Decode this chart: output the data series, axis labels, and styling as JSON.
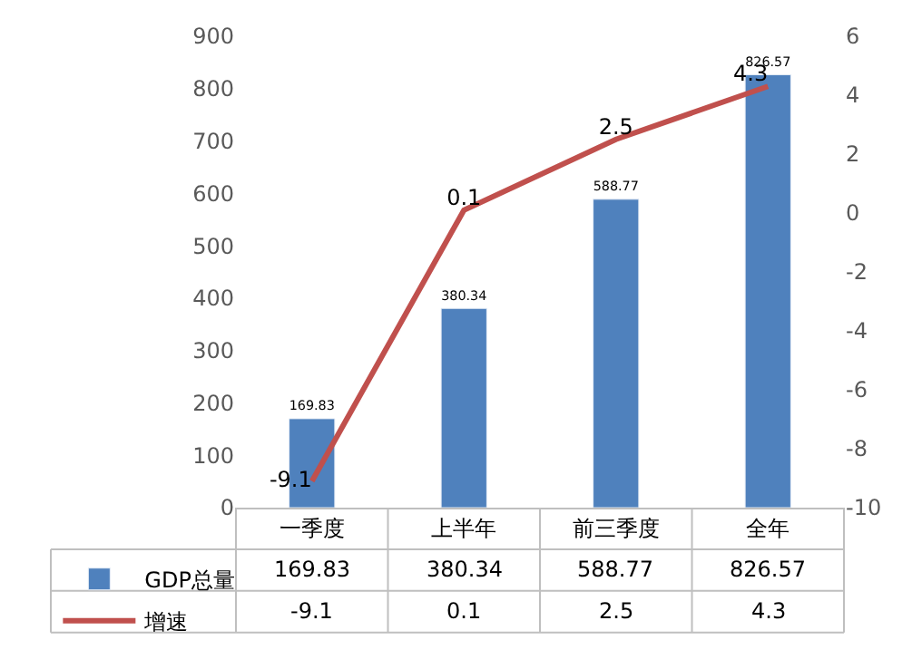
{
  "chart_data": {
    "type": "bar",
    "categories": [
      "一季度",
      "上半年",
      "前三季度",
      "全年"
    ],
    "series": [
      {
        "name": "GDP总量",
        "color": "#4f81bd",
        "values": [
          169.83,
          380.34,
          588.77,
          826.57
        ],
        "value_labels": [
          "169.83",
          "380.34",
          "588.77",
          "826.57"
        ]
      },
      {
        "name": "增速",
        "type": "line",
        "axis": "y2",
        "color": "#c0504d",
        "values": [
          -9.1,
          0.1,
          2.5,
          4.3
        ],
        "value_labels": [
          "-9.1",
          "0.1",
          "2.5",
          "4.3"
        ]
      }
    ],
    "ylim": [
      0,
      900
    ],
    "yticks": [
      0,
      100,
      200,
      300,
      400,
      500,
      600,
      700,
      800,
      900
    ],
    "y2lim": [
      -10,
      6
    ],
    "y2ticks": [
      -10,
      -8,
      -6,
      -4,
      -2,
      0,
      2,
      4,
      6
    ],
    "grid": false,
    "legend": "bottom",
    "marker": "none",
    "line_style": "solid"
  }
}
